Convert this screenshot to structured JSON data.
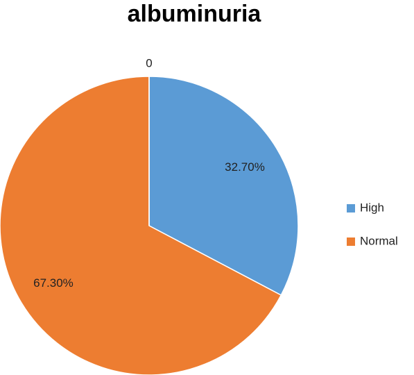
{
  "chart_data": {
    "type": "pie",
    "title": "albuminuria",
    "categories": [
      "High",
      "Normal",
      null
    ],
    "values": [
      32.7,
      67.3,
      0
    ],
    "value_labels": [
      "32.70%",
      "67.30%",
      "0"
    ],
    "colors": [
      "#5b9bd5",
      "#ed7d31",
      "#a5a5a5"
    ],
    "legend": "right"
  }
}
